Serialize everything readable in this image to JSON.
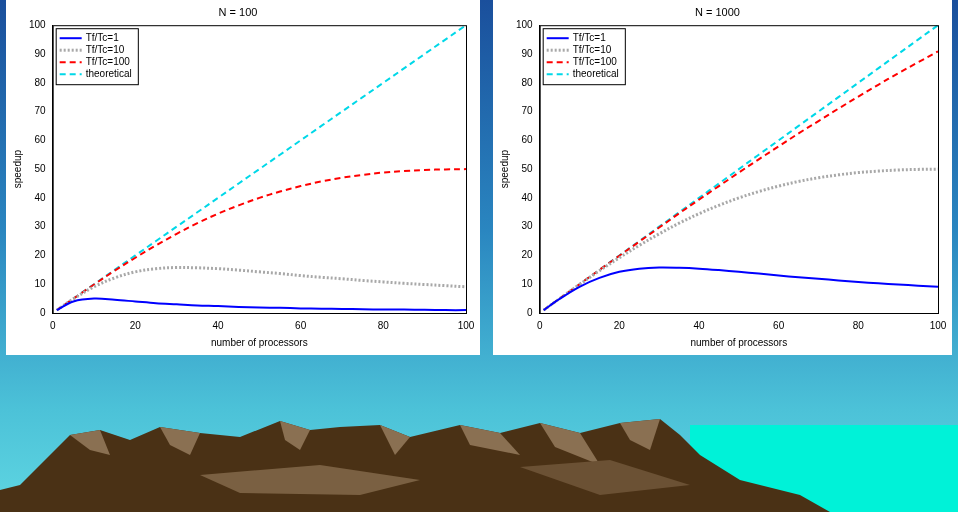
{
  "chart_data": [
    {
      "type": "line",
      "title": "N = 100",
      "xlabel": "number of processors",
      "ylabel": "speedup",
      "x": [
        1,
        5,
        10,
        15,
        20,
        25,
        30,
        35,
        40,
        45,
        50,
        55,
        60,
        65,
        70,
        75,
        80,
        85,
        90,
        95,
        100
      ],
      "series": [
        {
          "name": "Tf/Tc=1",
          "color": "#0000ff",
          "line_style": "solid",
          "values": [
            1.0,
            4.0,
            5.0,
            4.6,
            4.0,
            3.4,
            3.0,
            2.6,
            2.4,
            2.1,
            1.9,
            1.8,
            1.6,
            1.5,
            1.4,
            1.3,
            1.2,
            1.2,
            1.1,
            1.0,
            1.0
          ]
        },
        {
          "name": "Tf/Tc=10",
          "color": "#a8a8a8",
          "line_style": "dotted",
          "values": [
            1.0,
            4.9,
            9.1,
            12.2,
            14.3,
            15.4,
            15.8,
            15.7,
            15.4,
            14.9,
            14.3,
            13.7,
            13.0,
            12.4,
            11.9,
            11.3,
            10.8,
            10.3,
            9.9,
            9.5,
            9.1
          ]
        },
        {
          "name": "Tf/Tc=100",
          "color": "#ff0000",
          "line_style": "dashed",
          "values": [
            1.0,
            5.0,
            9.9,
            14.7,
            19.2,
            23.5,
            27.5,
            31.2,
            34.5,
            37.4,
            40.0,
            42.2,
            44.1,
            45.7,
            47.0,
            48.0,
            48.8,
            49.3,
            49.7,
            49.9,
            50.0
          ]
        },
        {
          "name": "theoretical",
          "color": "#00d8e8",
          "line_style": "dashed",
          "values": [
            1,
            5,
            10,
            15,
            20,
            25,
            30,
            35,
            40,
            45,
            50,
            55,
            60,
            65,
            70,
            75,
            80,
            85,
            90,
            95,
            100
          ]
        }
      ],
      "xlim": [
        0,
        100
      ],
      "xticks": [
        0,
        20,
        40,
        60,
        80,
        100
      ],
      "ylim": [
        0,
        100
      ],
      "yticks": [
        0,
        10,
        20,
        30,
        40,
        50,
        60,
        70,
        80,
        90,
        100
      ],
      "grid": false,
      "legend": "upper left"
    },
    {
      "type": "line",
      "title": "N = 1000",
      "xlabel": "number of processors",
      "ylabel": "speedup",
      "x": [
        1,
        5,
        10,
        15,
        20,
        25,
        30,
        35,
        40,
        45,
        50,
        55,
        60,
        65,
        70,
        75,
        80,
        85,
        90,
        95,
        100
      ],
      "series": [
        {
          "name": "Tf/Tc=1",
          "color": "#0000ff",
          "line_style": "solid",
          "values": [
            1.0,
            4.9,
            9.1,
            12.2,
            14.3,
            15.4,
            15.8,
            15.7,
            15.4,
            14.9,
            14.3,
            13.7,
            13.0,
            12.4,
            11.9,
            11.3,
            10.8,
            10.3,
            9.9,
            9.5,
            9.1
          ]
        },
        {
          "name": "Tf/Tc=10",
          "color": "#a8a8a8",
          "line_style": "dotted",
          "values": [
            1.0,
            5.0,
            9.9,
            14.7,
            19.2,
            23.5,
            27.5,
            31.2,
            34.5,
            37.4,
            40.0,
            42.2,
            44.1,
            45.7,
            47.0,
            48.0,
            48.8,
            49.3,
            49.7,
            49.9,
            50.0
          ]
        },
        {
          "name": "Tf/Tc=100",
          "color": "#ff0000",
          "line_style": "dashed",
          "values": [
            1.0,
            5.0,
            10.0,
            15.0,
            19.9,
            24.8,
            29.7,
            34.6,
            39.4,
            44.1,
            48.8,
            53.4,
            57.9,
            62.4,
            66.7,
            71.0,
            75.2,
            79.3,
            83.3,
            87.1,
            90.9
          ]
        },
        {
          "name": "theoretical",
          "color": "#00d8e8",
          "line_style": "dashed",
          "values": [
            1,
            5,
            10,
            15,
            20,
            25,
            30,
            35,
            40,
            45,
            50,
            55,
            60,
            65,
            70,
            75,
            80,
            85,
            90,
            95,
            100
          ]
        }
      ],
      "xlim": [
        0,
        100
      ],
      "xticks": [
        0,
        20,
        40,
        60,
        80,
        100
      ],
      "ylim": [
        0,
        100
      ],
      "yticks": [
        0,
        10,
        20,
        30,
        40,
        50,
        60,
        70,
        80,
        90,
        100
      ],
      "grid": false,
      "legend": "upper left"
    }
  ]
}
